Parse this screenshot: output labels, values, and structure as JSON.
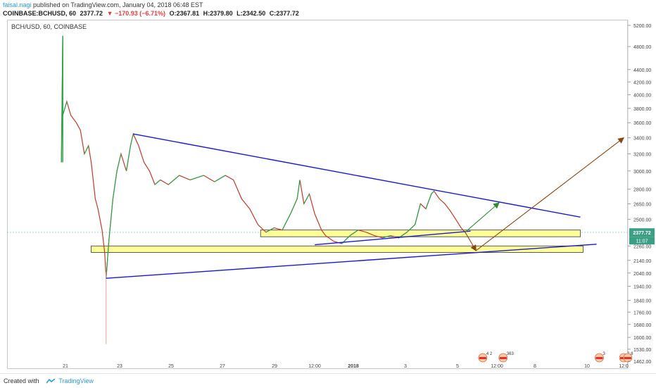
{
  "header": {
    "author": "faisal.nagi",
    "published": "published on TradingView.com, January 04, 2018 06:48 EST",
    "symbol": "COINBASE:BCHUSD, 60",
    "last": "2377.72",
    "change": "▼ −170.93 (−6.71%)",
    "open": "O:2367.81",
    "high": "H:2379.80",
    "low": "L:2342.50",
    "close": "C:2377.72"
  },
  "chart_label": "BCH/USD, 60, COINBASE",
  "footer": {
    "created_with": "Created with",
    "brand": "TradingView"
  },
  "price_tags": {
    "last": "2377.72",
    "countdown": "11:07"
  },
  "chart_data": {
    "type": "candlestick",
    "symbol": "BCH/USD",
    "interval": "60",
    "exchange": "COINBASE",
    "y_axis_ticks": [
      5200,
      4800,
      4400,
      4200,
      4000,
      3800,
      3600,
      3400,
      3200,
      3000,
      2800,
      2650,
      2500,
      2260,
      2140,
      2040,
      1940,
      1840,
      1760,
      1680,
      1600,
      1530,
      1462
    ],
    "y_axis_labels": [
      "5200.00",
      "4800.00",
      "4400.00",
      "4200.00",
      "4000.00",
      "3800.00",
      "3600.00",
      "3400.00",
      "3200.00",
      "3000.00",
      "2800.00",
      "2650.00",
      "2500.00",
      "2260.00",
      "2140.00",
      "2040.00",
      "1940.00",
      "1840.00",
      "1760.00",
      "1680.00",
      "1600.00",
      "1530.00",
      "1462.00"
    ],
    "x_axis_labels": [
      "21",
      "23",
      "25",
      "27",
      "29",
      "12:00",
      "2018",
      "3",
      "5",
      "12:00",
      "8",
      "10",
      "12:0"
    ],
    "y_scale": "log",
    "grid": false,
    "last_price": 2377.72,
    "price_path": [
      [
        20.85,
        3100
      ],
      [
        20.9,
        4950
      ],
      [
        20.9,
        3700
      ],
      [
        21.05,
        3900
      ],
      [
        21.2,
        3700
      ],
      [
        21.4,
        3600
      ],
      [
        21.55,
        3500
      ],
      [
        21.7,
        3200
      ],
      [
        21.85,
        3300
      ],
      [
        21.95,
        3100
      ],
      [
        22.1,
        2700
      ],
      [
        22.2,
        2600
      ],
      [
        22.35,
        2400
      ],
      [
        22.45,
        2200
      ],
      [
        22.5,
        2000
      ],
      [
        22.6,
        2300
      ],
      [
        22.75,
        2700
      ],
      [
        22.9,
        3000
      ],
      [
        23.05,
        3200
      ],
      [
        23.25,
        3000
      ],
      [
        23.4,
        3300
      ],
      [
        23.5,
        3450
      ],
      [
        23.7,
        3300
      ],
      [
        23.9,
        3100
      ],
      [
        24.1,
        3000
      ],
      [
        24.3,
        2850
      ],
      [
        24.5,
        2900
      ],
      [
        24.8,
        2850
      ],
      [
        25.2,
        2950
      ],
      [
        25.6,
        2900
      ],
      [
        26.1,
        2950
      ],
      [
        26.5,
        2880
      ],
      [
        26.9,
        2950
      ],
      [
        27.2,
        2900
      ],
      [
        27.5,
        2700
      ],
      [
        27.8,
        2600
      ],
      [
        28.1,
        2450
      ],
      [
        28.4,
        2380
      ],
      [
        28.7,
        2420
      ],
      [
        29.0,
        2400
      ],
      [
        29.3,
        2550
      ],
      [
        29.55,
        2700
      ],
      [
        29.65,
        2900
      ],
      [
        29.8,
        2650
      ],
      [
        30.0,
        2750
      ],
      [
        30.2,
        2550
      ],
      [
        30.45,
        2400
      ],
      [
        30.6,
        2350
      ],
      [
        30.9,
        2300
      ],
      [
        31.2,
        2280
      ],
      [
        31.5,
        2350
      ],
      [
        31.8,
        2400
      ],
      [
        32.1,
        2380
      ],
      [
        32.4,
        2350
      ],
      [
        32.7,
        2330
      ],
      [
        33.0,
        2350
      ],
      [
        33.3,
        2330
      ],
      [
        33.6,
        2380
      ],
      [
        33.9,
        2450
      ],
      [
        34.1,
        2650
      ],
      [
        34.3,
        2600
      ],
      [
        34.5,
        2750
      ],
      [
        34.6,
        2780
      ],
      [
        34.8,
        2700
      ],
      [
        35.0,
        2650
      ],
      [
        35.2,
        2580
      ],
      [
        35.4,
        2500
      ],
      [
        35.6,
        2420
      ],
      [
        35.75,
        2378
      ]
    ],
    "trend_lines": [
      {
        "name": "upper-trendline",
        "from": [
          23.5,
          3450
        ],
        "to": [
          40.0,
          2520
        ],
        "color": "#1a1acc"
      },
      {
        "name": "lower-trendline",
        "from": [
          22.5,
          2000
        ],
        "to": [
          40.6,
          2275
        ],
        "color": "#1a1acc"
      },
      {
        "name": "inner-trendline",
        "from": [
          30.2,
          2270
        ],
        "to": [
          35.95,
          2390
        ],
        "color": "#1a1acc"
      }
    ],
    "zones": [
      {
        "name": "upper-support-zone",
        "x": [
          28.2,
          40.0
        ],
        "y": [
          2340,
          2400
        ],
        "color": "#ffff99"
      },
      {
        "name": "lower-support-zone",
        "x": [
          21.95,
          40.1
        ],
        "y": [
          2205,
          2260
        ],
        "color": "#ffff99"
      }
    ],
    "projections": [
      {
        "name": "bullish-green-arrow",
        "from": [
          35.75,
          2380
        ],
        "to": [
          37.0,
          2660
        ],
        "color": "#2e8b2e"
      },
      {
        "name": "bearish-brown-arrow",
        "from": [
          35.75,
          2380
        ],
        "to": [
          36.15,
          2220
        ],
        "color": "#8b4513"
      },
      {
        "name": "bullish-brown-arrow",
        "from": [
          36.15,
          2220
        ],
        "to": [
          41.6,
          3400
        ],
        "color": "#8b4513"
      }
    ],
    "event_markers": [
      {
        "x": 36.4,
        "label": "4 2"
      },
      {
        "x": 37.15,
        "label": "363"
      },
      {
        "x": 40.7,
        "label": "3"
      },
      {
        "x": 41.6,
        "label": "2 8"
      },
      {
        "x": 41.75,
        "label": ""
      }
    ]
  }
}
